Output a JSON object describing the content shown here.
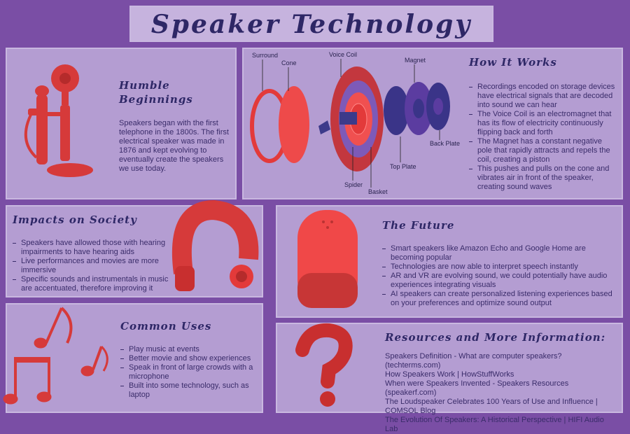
{
  "title": "Speaker Technology",
  "humble": {
    "heading": "Humble Beginnings",
    "text": "Speakers began with the first telephone in the 1800s. The first electrical speaker was made in 1876 and kept evolving to eventually create the speakers we use today."
  },
  "how_it_works": {
    "heading": "How It Works",
    "labels": {
      "surround": "Surround",
      "cone": "Cone",
      "voice_coil": "Voice Coil",
      "magnet": "Magnet",
      "back_plate": "Back Plate",
      "top_plate": "Top Plate",
      "basket": "Basket",
      "spider": "Spider"
    },
    "items": [
      "Recordings encoded on storage devices have electrical signals that are decoded into sound we can hear",
      "The Voice Coil is an electromagnet that has its flow of electricity continuously flipping back and forth",
      "The Magnet has a constant negative pole that rapidly attracts and repels the coil, creating a piston",
      "This pushes and pulls on the cone and vibrates air in front of the speaker, creating sound waves"
    ]
  },
  "impacts": {
    "heading": "Impacts on Society",
    "items": [
      "Speakers have allowed those with hearing impairments to have hearing aids",
      "Live performances and movies are more immersive",
      "Specific sounds and instrumentals in music are accentuated, therefore improving it"
    ]
  },
  "future": {
    "heading": "The Future",
    "items": [
      "Smart speakers like Amazon Echo and Google Home are becoming popular",
      "Technologies are now able to interpret speech instantly",
      "AR and VR are evolving sound, we could potentially have audio experiences integrating visuals",
      "AI speakers can create personalized listening experiences based on your preferences and optimize sound output"
    ]
  },
  "uses": {
    "heading": "Common Uses",
    "items": [
      "Play music at events",
      "Better movie and show experiences",
      "Speak in front of large crowds with a microphone",
      "Built into some technology, such as laptop"
    ]
  },
  "resources": {
    "heading": "Resources and More Information:",
    "items": [
      "Speakers Definition - What are computer speakers? (techterms.com)",
      "How Speakers Work | HowStuffWorks",
      "When were Speakers Invented - Speakers Resources (speakerf.com)",
      "The Loudspeaker Celebrates 100 Years of Use and Influence | COMSOL Blog",
      "The Evolution Of Speakers: A Historical Perspective | HIFI Audio Lab"
    ]
  }
}
